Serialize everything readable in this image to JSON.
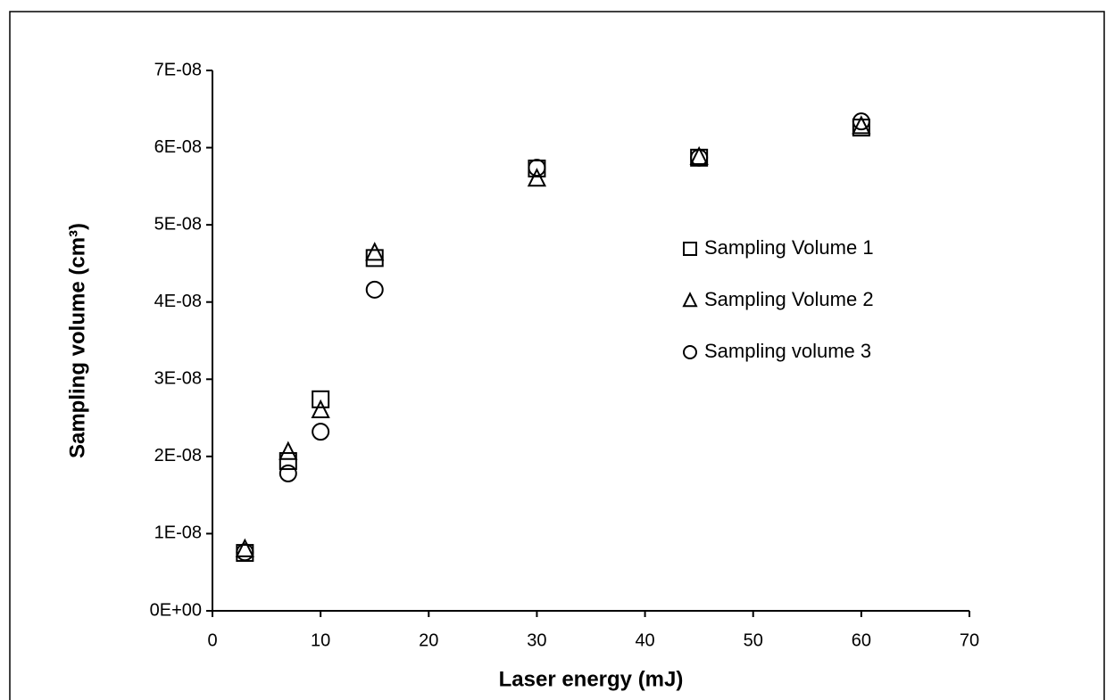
{
  "chart_data": {
    "type": "scatter",
    "x_label": "Laser energy (mJ)",
    "y_label": "Sampling volume (cm³)",
    "x": [
      3,
      7,
      10,
      15,
      30,
      45,
      60
    ],
    "series": [
      {
        "name": "Sampling Volume 1",
        "marker": "square",
        "color": "#000000",
        "values": [
          7.5e-09,
          1.94e-08,
          2.74e-08,
          4.57e-08,
          5.73e-08,
          5.87e-08,
          6.26e-08
        ]
      },
      {
        "name": "Sampling Volume 2",
        "marker": "triangle",
        "color": "#000000",
        "values": [
          8e-09,
          2.06e-08,
          2.6e-08,
          4.64e-08,
          5.6e-08,
          5.88e-08,
          6.28e-08
        ]
      },
      {
        "name": "Sampling volume 3",
        "marker": "circle",
        "color": "#000000",
        "values": [
          7.6e-09,
          1.78e-08,
          2.32e-08,
          4.16e-08,
          5.74e-08,
          5.87e-08,
          6.34e-08
        ]
      }
    ],
    "xlim": [
      0,
      70
    ],
    "xticks": [
      0,
      10,
      20,
      30,
      40,
      50,
      60,
      70
    ],
    "ylim": [
      0,
      7e-08
    ],
    "yticks": [
      {
        "value": 0,
        "label": "0E+00"
      },
      {
        "value": 1e-08,
        "label": "1E-08"
      },
      {
        "value": 2e-08,
        "label": "2E-08"
      },
      {
        "value": 3e-08,
        "label": "3E-08"
      },
      {
        "value": 4e-08,
        "label": "4E-08"
      },
      {
        "value": 5e-08,
        "label": "5E-08"
      },
      {
        "value": 6e-08,
        "label": "6E-08"
      },
      {
        "value": 7e-08,
        "label": "7E-08"
      }
    ],
    "grid": false,
    "legend": "right"
  }
}
